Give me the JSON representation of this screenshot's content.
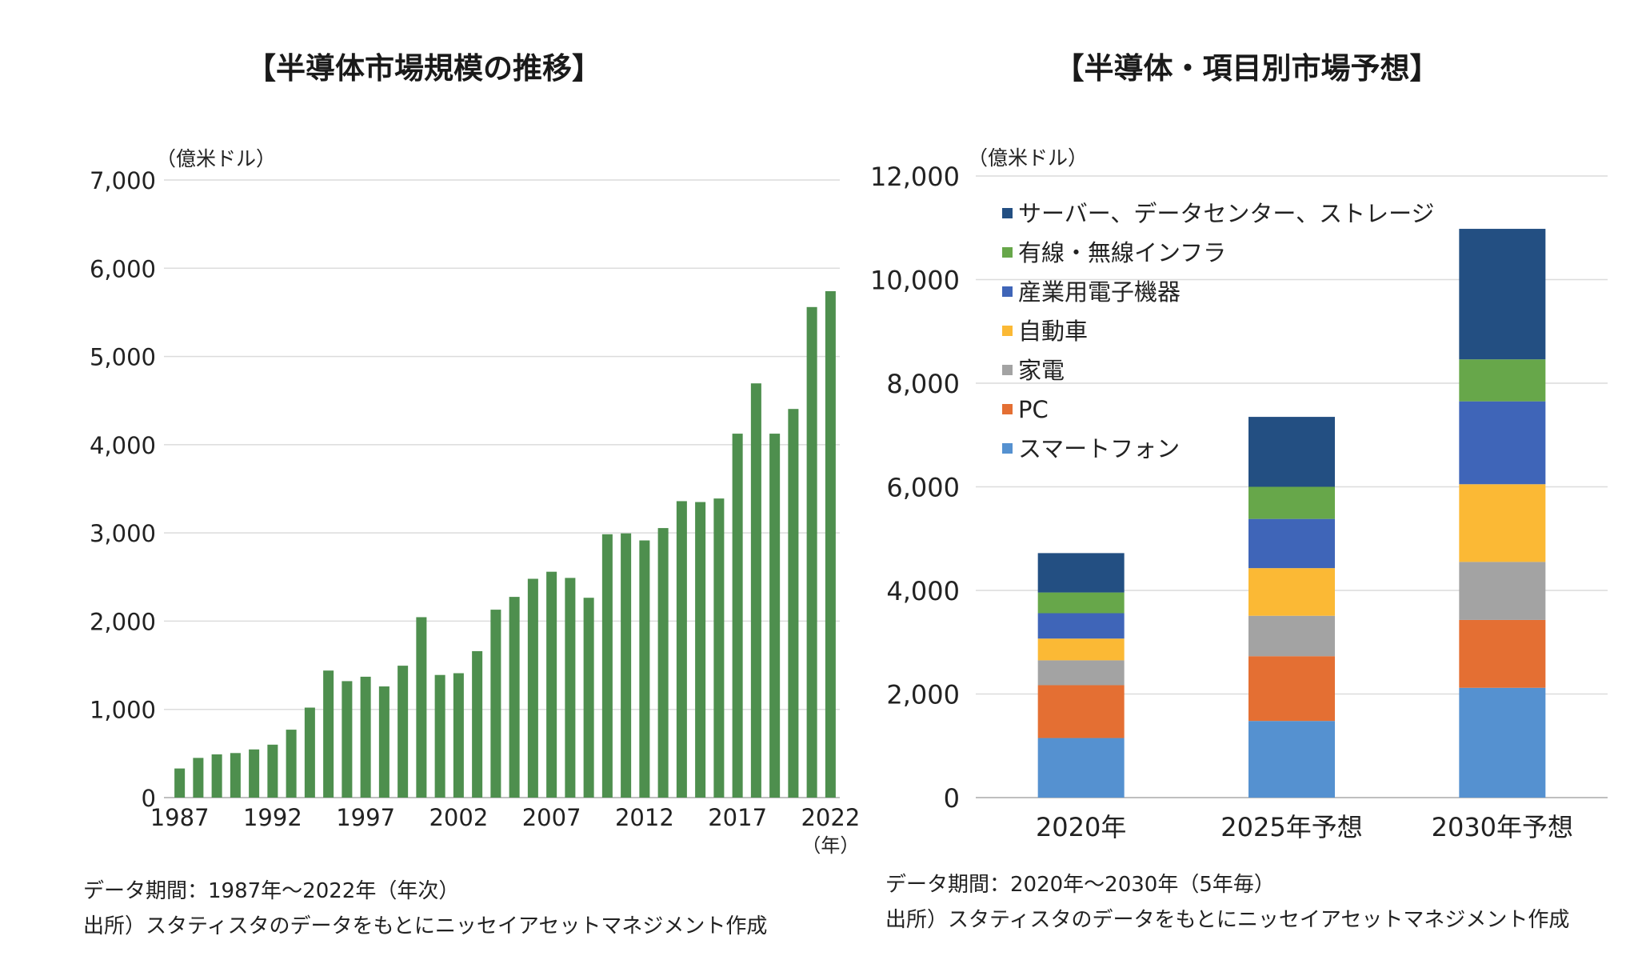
{
  "chart_data": [
    {
      "type": "bar",
      "title": "【半導体市場規模の推移】",
      "unit_label": "（億米ドル）",
      "x_unit_label": "（年）",
      "ylim": [
        0,
        7000
      ],
      "y_ticks": [
        "0",
        "1,000",
        "2,000",
        "3,000",
        "4,000",
        "5,000",
        "6,000",
        "7,000"
      ],
      "y_tick_values": [
        0,
        1000,
        2000,
        3000,
        4000,
        5000,
        6000,
        7000
      ],
      "x_tick_labels": [
        "1987",
        "1992",
        "1997",
        "2002",
        "2007",
        "2012",
        "2017",
        "2022"
      ],
      "grid": true,
      "bar_color": "#4e8f4e",
      "categories": [
        1987,
        1988,
        1989,
        1990,
        1991,
        1992,
        1993,
        1994,
        1995,
        1996,
        1997,
        1998,
        1999,
        2000,
        2001,
        2002,
        2003,
        2004,
        2005,
        2006,
        2007,
        2008,
        2009,
        2010,
        2011,
        2012,
        2013,
        2014,
        2015,
        2016,
        2017,
        2018,
        2019,
        2020,
        2021,
        2022
      ],
      "values": [
        330,
        450,
        490,
        505,
        546,
        600,
        770,
        1020,
        1440,
        1320,
        1370,
        1260,
        1495,
        2045,
        1390,
        1410,
        1660,
        2130,
        2275,
        2480,
        2560,
        2490,
        2265,
        2985,
        2995,
        2915,
        3055,
        3360,
        3350,
        3390,
        4125,
        4695,
        4125,
        4405,
        5560,
        5740
      ],
      "notes": [
        "データ期間：1987年〜2022年（年次）",
        "出所）スタティスタのデータをもとにニッセイアセットマネジメント作成"
      ]
    },
    {
      "type": "bar",
      "stacked": true,
      "title": "【半導体・項目別市場予想】",
      "unit_label": "（億米ドル）",
      "ylim": [
        0,
        12000
      ],
      "y_ticks": [
        "0",
        "2,000",
        "4,000",
        "6,000",
        "8,000",
        "10,000",
        "12,000"
      ],
      "y_tick_values": [
        0,
        2000,
        4000,
        6000,
        8000,
        10000,
        12000
      ],
      "grid": true,
      "legend_position": "top-left",
      "categories": [
        "2020年",
        "2025年予想",
        "2030年予想"
      ],
      "series": [
        {
          "name": "スマートフォン",
          "color": "#5591d0",
          "values": [
            1150,
            1480,
            2120
          ]
        },
        {
          "name": "PC",
          "color": "#e46f33",
          "values": [
            1020,
            1250,
            1310
          ]
        },
        {
          "name": "家電",
          "color": "#a3a3a3",
          "values": [
            480,
            780,
            1120
          ]
        },
        {
          "name": "自動車",
          "color": "#fbb935",
          "values": [
            420,
            920,
            1500
          ]
        },
        {
          "name": "産業用電子機器",
          "color": "#3f65b8",
          "values": [
            490,
            950,
            1600
          ]
        },
        {
          "name": "有線・無線インフラ",
          "color": "#67a74a",
          "values": [
            400,
            620,
            810
          ]
        },
        {
          "name": "サーバー、データセンター、ストレージ",
          "color": "#234f82",
          "values": [
            760,
            1350,
            2520
          ]
        }
      ],
      "notes": [
        "データ期間：2020年〜2030年（5年毎）",
        "出所）スタティスタのデータをもとにニッセイアセットマネジメント作成"
      ]
    }
  ]
}
